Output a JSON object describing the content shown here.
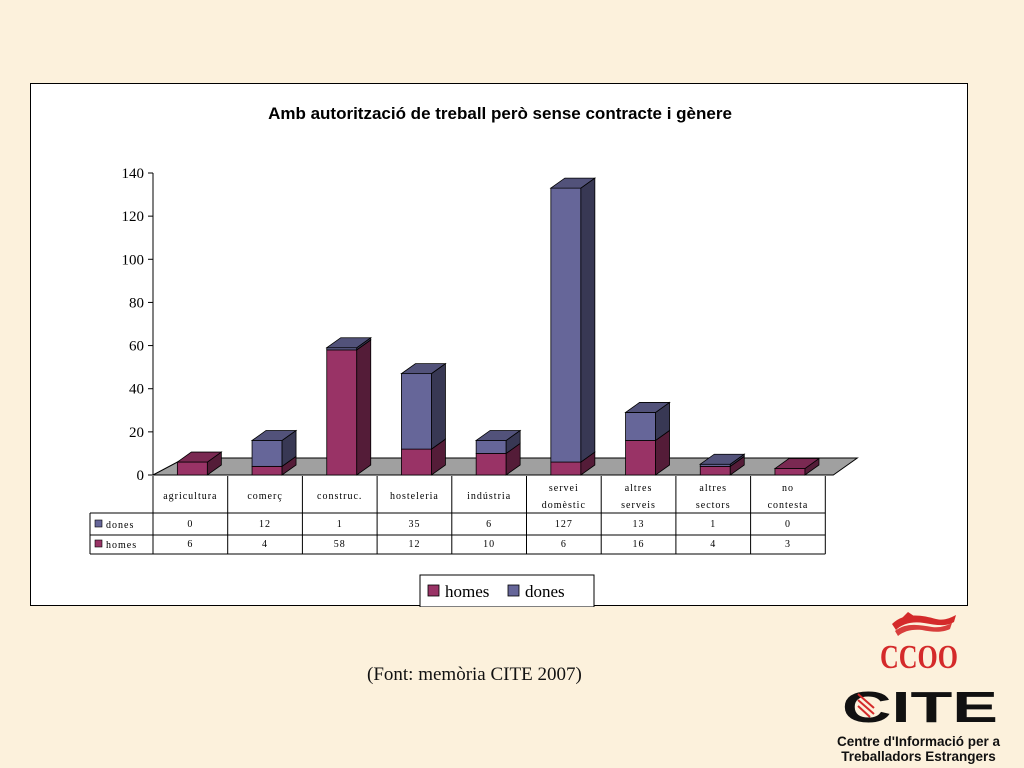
{
  "chart_data": {
    "type": "bar",
    "stacked": true,
    "three_d": true,
    "title": "Amb autorització de treball però sense contracte i gènere",
    "categories": [
      [
        "agricultura"
      ],
      [
        "comerç"
      ],
      [
        "construc."
      ],
      [
        "hosteleria"
      ],
      [
        "indústria"
      ],
      [
        "servei",
        "domèstic"
      ],
      [
        "altres",
        "serveis"
      ],
      [
        "altres",
        "sectors"
      ],
      [
        "no",
        "contesta"
      ]
    ],
    "series": [
      {
        "name": "homes",
        "color": "#993366",
        "values": [
          6,
          4,
          58,
          12,
          10,
          6,
          16,
          4,
          3
        ]
      },
      {
        "name": "dones",
        "color": "#666699",
        "values": [
          0,
          12,
          1,
          35,
          6,
          127,
          13,
          1,
          0
        ]
      }
    ],
    "ylim": [
      0,
      140
    ],
    "yticks": [
      0,
      20,
      40,
      60,
      80,
      100,
      120,
      140
    ],
    "legend": [
      "homes",
      "dones"
    ],
    "legend_position": "bottom",
    "data_table": true
  },
  "source_note": "(Font: memòria CITE 2007)",
  "logos": {
    "ccoo": "CCOO",
    "cite": "CITE"
  },
  "organization": {
    "line1": "Centre d'Informació per a",
    "line2": "Treballadors Estrangers"
  }
}
